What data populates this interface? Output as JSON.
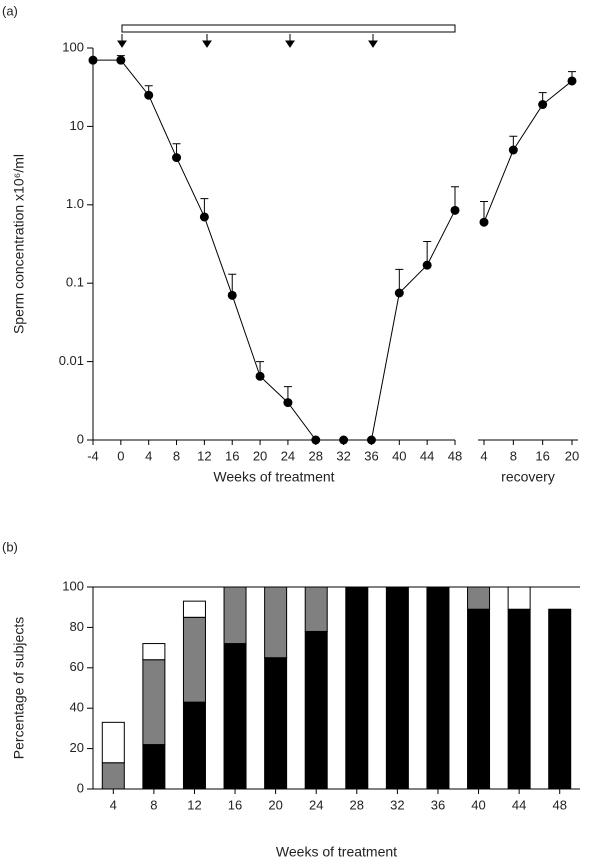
{
  "chart_data": [
    {
      "panel_label": "(a)",
      "type": "line",
      "log_scale": true,
      "ylabel": "Sperm concentration x10⁶/ml",
      "xlabel": "Weeks of treatment",
      "x": [
        -4,
        0,
        4,
        8,
        12,
        16,
        20,
        24,
        28,
        32,
        36,
        40,
        44,
        48
      ],
      "values": [
        70,
        70,
        25,
        4,
        0.7,
        0.07,
        0.0065,
        0.003,
        0,
        0,
        0,
        0.075,
        0.17,
        0.85
      ],
      "errors": [
        null,
        10,
        8,
        2,
        0.5,
        0.06,
        0.0035,
        0.0018,
        null,
        null,
        null,
        0.075,
        0.17,
        0.85
      ],
      "xlim": [
        -4,
        48
      ],
      "xticks": [
        -4,
        0,
        4,
        8,
        12,
        16,
        20,
        24,
        28,
        32,
        36,
        40,
        44,
        48
      ],
      "ylim": [
        0.001,
        100
      ],
      "yticks": [
        0,
        0.01,
        0.1,
        {
          "value": 1,
          "label": "1.0"
        },
        10,
        100
      ],
      "color": "#000000"
    },
    {
      "type": "line",
      "log_scale": true,
      "xlabel": "recovery",
      "categories": [
        "4",
        "8",
        "16",
        "20"
      ],
      "values": [
        0.6,
        5,
        19,
        38
      ],
      "errors": [
        0.5,
        2.5,
        8,
        12
      ],
      "ylim": [
        0.001,
        100
      ],
      "color": "#000000"
    },
    {
      "panel_label": "(b)",
      "type": "bar",
      "stacked": true,
      "ylabel": "Percentage of subjects",
      "xlabel": "Weeks of treatment",
      "categories": [
        "4",
        "8",
        "12",
        "16",
        "20",
        "24",
        "28",
        "32",
        "36",
        "40",
        "44",
        "48"
      ],
      "series": [
        {
          "color": "#000000",
          "values": [
            0,
            22,
            43,
            72,
            65,
            78,
            100,
            100,
            100,
            89,
            89,
            89
          ]
        },
        {
          "color": "#808080",
          "values": [
            13,
            42,
            42,
            28,
            35,
            22,
            0,
            0,
            0,
            11,
            0,
            0
          ]
        },
        {
          "color": "#ffffff",
          "values": [
            20,
            8,
            8,
            0,
            0,
            0,
            0,
            0,
            0,
            0,
            11,
            0
          ]
        }
      ],
      "ylim": [
        0,
        100
      ],
      "yticks": [
        0,
        20,
        40,
        60,
        80,
        100
      ]
    }
  ]
}
